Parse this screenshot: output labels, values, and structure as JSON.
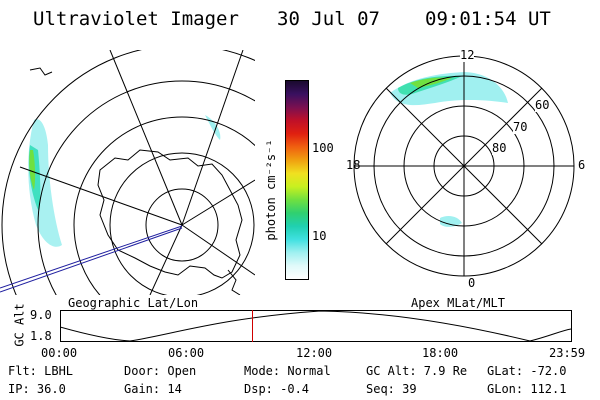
{
  "header": {
    "title": "Ultraviolet Imager",
    "date": "30 Jul 07",
    "time": "09:01:54 UT"
  },
  "left_panel": {
    "caption": "Geographic Lat/Lon"
  },
  "right_panel": {
    "caption": "Apex MLat/MLT",
    "mlt_labels": {
      "top": "12",
      "left": "18",
      "right": "6",
      "bottom": "0"
    },
    "lat_labels": [
      "60",
      "70",
      "80"
    ]
  },
  "colorbar": {
    "unit": "photon cm⁻²s⁻¹",
    "ticks": [
      "100",
      "10"
    ],
    "colors": [
      "#1a0a2e",
      "#3a1060",
      "#7a1050",
      "#c01028",
      "#e02010",
      "#f06010",
      "#f0a010",
      "#f0e020",
      "#c8f020",
      "#70e040",
      "#30d070",
      "#20d0b0",
      "#40e0e0",
      "#a0f0f0",
      "#e0fafa",
      "#ffffff"
    ]
  },
  "altitude_plot": {
    "ylabel": "GC Alt",
    "ymax": "9.0",
    "ymin": "1.8",
    "xticks": [
      "00:00",
      "06:00",
      "12:00",
      "18:00",
      "23:59"
    ],
    "current_time_fraction": 0.376,
    "marker_color": "#d00000"
  },
  "info": {
    "flt": "Flt: LBHL",
    "ip": "IP: 36.0",
    "door": "Door: Open",
    "gain": "Gain: 14",
    "mode": "Mode: Normal",
    "dsp": "Dsp:   -0.4",
    "gc_alt": "GC Alt: 7.9 Re",
    "seq": "Seq: 39",
    "glat": "GLat: -72.0",
    "glon": "GLon: 112.1"
  }
}
